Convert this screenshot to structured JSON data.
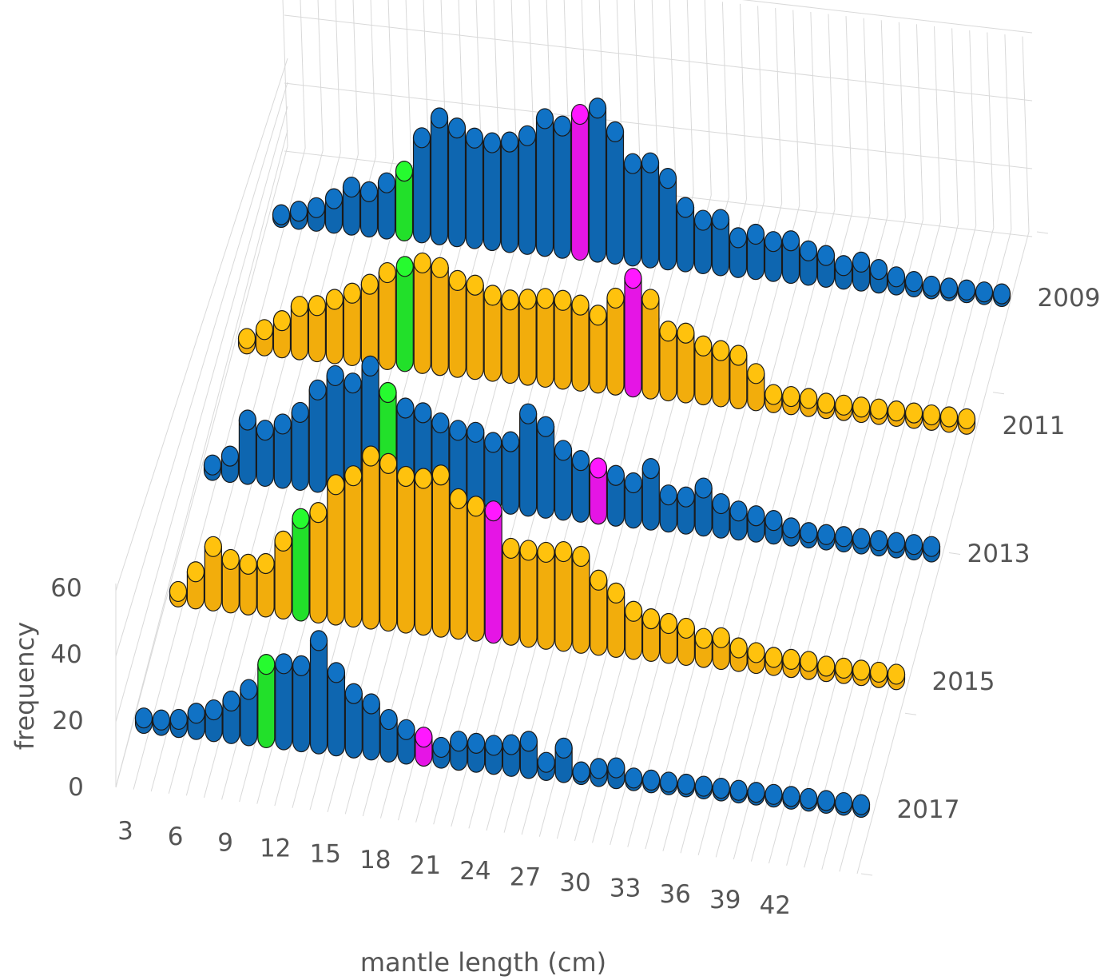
{
  "chart_data": {
    "type": "bar",
    "title": "",
    "xlabel": "mantle length (cm)",
    "ylabel": "frequency",
    "ylim": [
      0,
      60
    ],
    "yticks": [
      "0",
      "20",
      "40",
      "60"
    ],
    "xticks": [
      "3",
      "6",
      "9",
      "12",
      "15",
      "18",
      "21",
      "24",
      "27",
      "30",
      "33",
      "36",
      "39",
      "42"
    ],
    "categories": [
      3,
      4,
      5,
      6,
      7,
      8,
      9,
      10,
      11,
      12,
      13,
      14,
      15,
      16,
      17,
      18,
      19,
      20,
      21,
      22,
      23,
      24,
      25,
      26,
      27,
      28,
      29,
      30,
      31,
      32,
      33,
      34,
      35,
      36,
      37,
      38,
      39,
      40,
      41,
      42,
      43,
      44
    ],
    "colors": {
      "blue": "#0e66b0",
      "orange": "#f2ad0c",
      "green": "#22e02a",
      "magenta": "#e515e5",
      "grid": "#d9d9d9"
    },
    "series": [
      {
        "name": "2009",
        "color": "#0e66b0",
        "highlights": [
          {
            "x": 10,
            "color": "#22e02a"
          },
          {
            "x": 20,
            "color": "#e515e5"
          }
        ],
        "values": [
          1,
          3,
          5,
          9,
          14,
          13,
          17,
          22,
          35,
          43,
          40,
          37,
          36,
          37,
          40,
          47,
          45,
          50,
          53,
          45,
          34,
          35,
          30,
          20,
          16,
          17,
          11,
          13,
          11,
          12,
          9,
          8,
          5,
          7,
          5,
          3,
          2,
          1,
          1,
          1,
          1,
          1
        ]
      },
      {
        "name": "2011",
        "color": "#f2ad0c",
        "highlights": [
          {
            "x": 12,
            "color": "#22e02a"
          },
          {
            "x": 25,
            "color": "#e515e5"
          }
        ],
        "values": [
          2,
          6,
          10,
          16,
          17,
          20,
          23,
          27,
          32,
          35,
          37,
          36,
          32,
          31,
          28,
          27,
          28,
          29,
          29,
          28,
          25,
          32,
          40,
          33,
          22,
          22,
          18,
          17,
          16,
          10,
          3,
          3,
          3,
          2,
          2,
          2,
          2,
          2,
          2,
          2,
          2,
          2
        ]
      },
      {
        "name": "2013",
        "color": "#0e66b0",
        "highlights": [
          {
            "x": 13,
            "color": "#22e02a"
          },
          {
            "x": 25,
            "color": "#e515e5"
          }
        ],
        "values": [
          2,
          6,
          20,
          17,
          20,
          25,
          34,
          40,
          38,
          45,
          36,
          31,
          30,
          27,
          25,
          25,
          22,
          23,
          34,
          30,
          22,
          19,
          17,
          15,
          13,
          19,
          10,
          10,
          14,
          9,
          7,
          6,
          5,
          3,
          2,
          2,
          2,
          2,
          2,
          2,
          2,
          2
        ]
      },
      {
        "name": "2015",
        "color": "#f2ad0c",
        "highlights": [
          {
            "x": 10,
            "color": "#22e02a"
          },
          {
            "x": 21,
            "color": "#e515e5"
          }
        ],
        "values": [
          2,
          10,
          20,
          16,
          15,
          16,
          25,
          34,
          37,
          48,
          52,
          60,
          58,
          54,
          54,
          56,
          48,
          46,
          45,
          32,
          32,
          32,
          33,
          32,
          24,
          20,
          14,
          12,
          11,
          10,
          7,
          8,
          5,
          4,
          3,
          3,
          3,
          2,
          2,
          2,
          2,
          2
        ]
      },
      {
        "name": "2017",
        "color": "#0e66b0",
        "highlights": [
          {
            "x": 10,
            "color": "#22e02a"
          },
          {
            "x": 19,
            "color": "#e515e5"
          }
        ],
        "values": [
          2,
          2,
          3,
          6,
          8,
          12,
          17,
          27,
          28,
          28,
          38,
          27,
          20,
          17,
          12,
          9,
          7,
          4,
          7,
          7,
          7,
          8,
          10,
          3,
          9,
          1,
          3,
          4,
          1,
          1,
          1,
          1,
          1,
          1,
          1,
          1,
          1,
          1,
          1,
          1,
          1,
          1
        ]
      }
    ],
    "grid": true,
    "legend": "none"
  }
}
